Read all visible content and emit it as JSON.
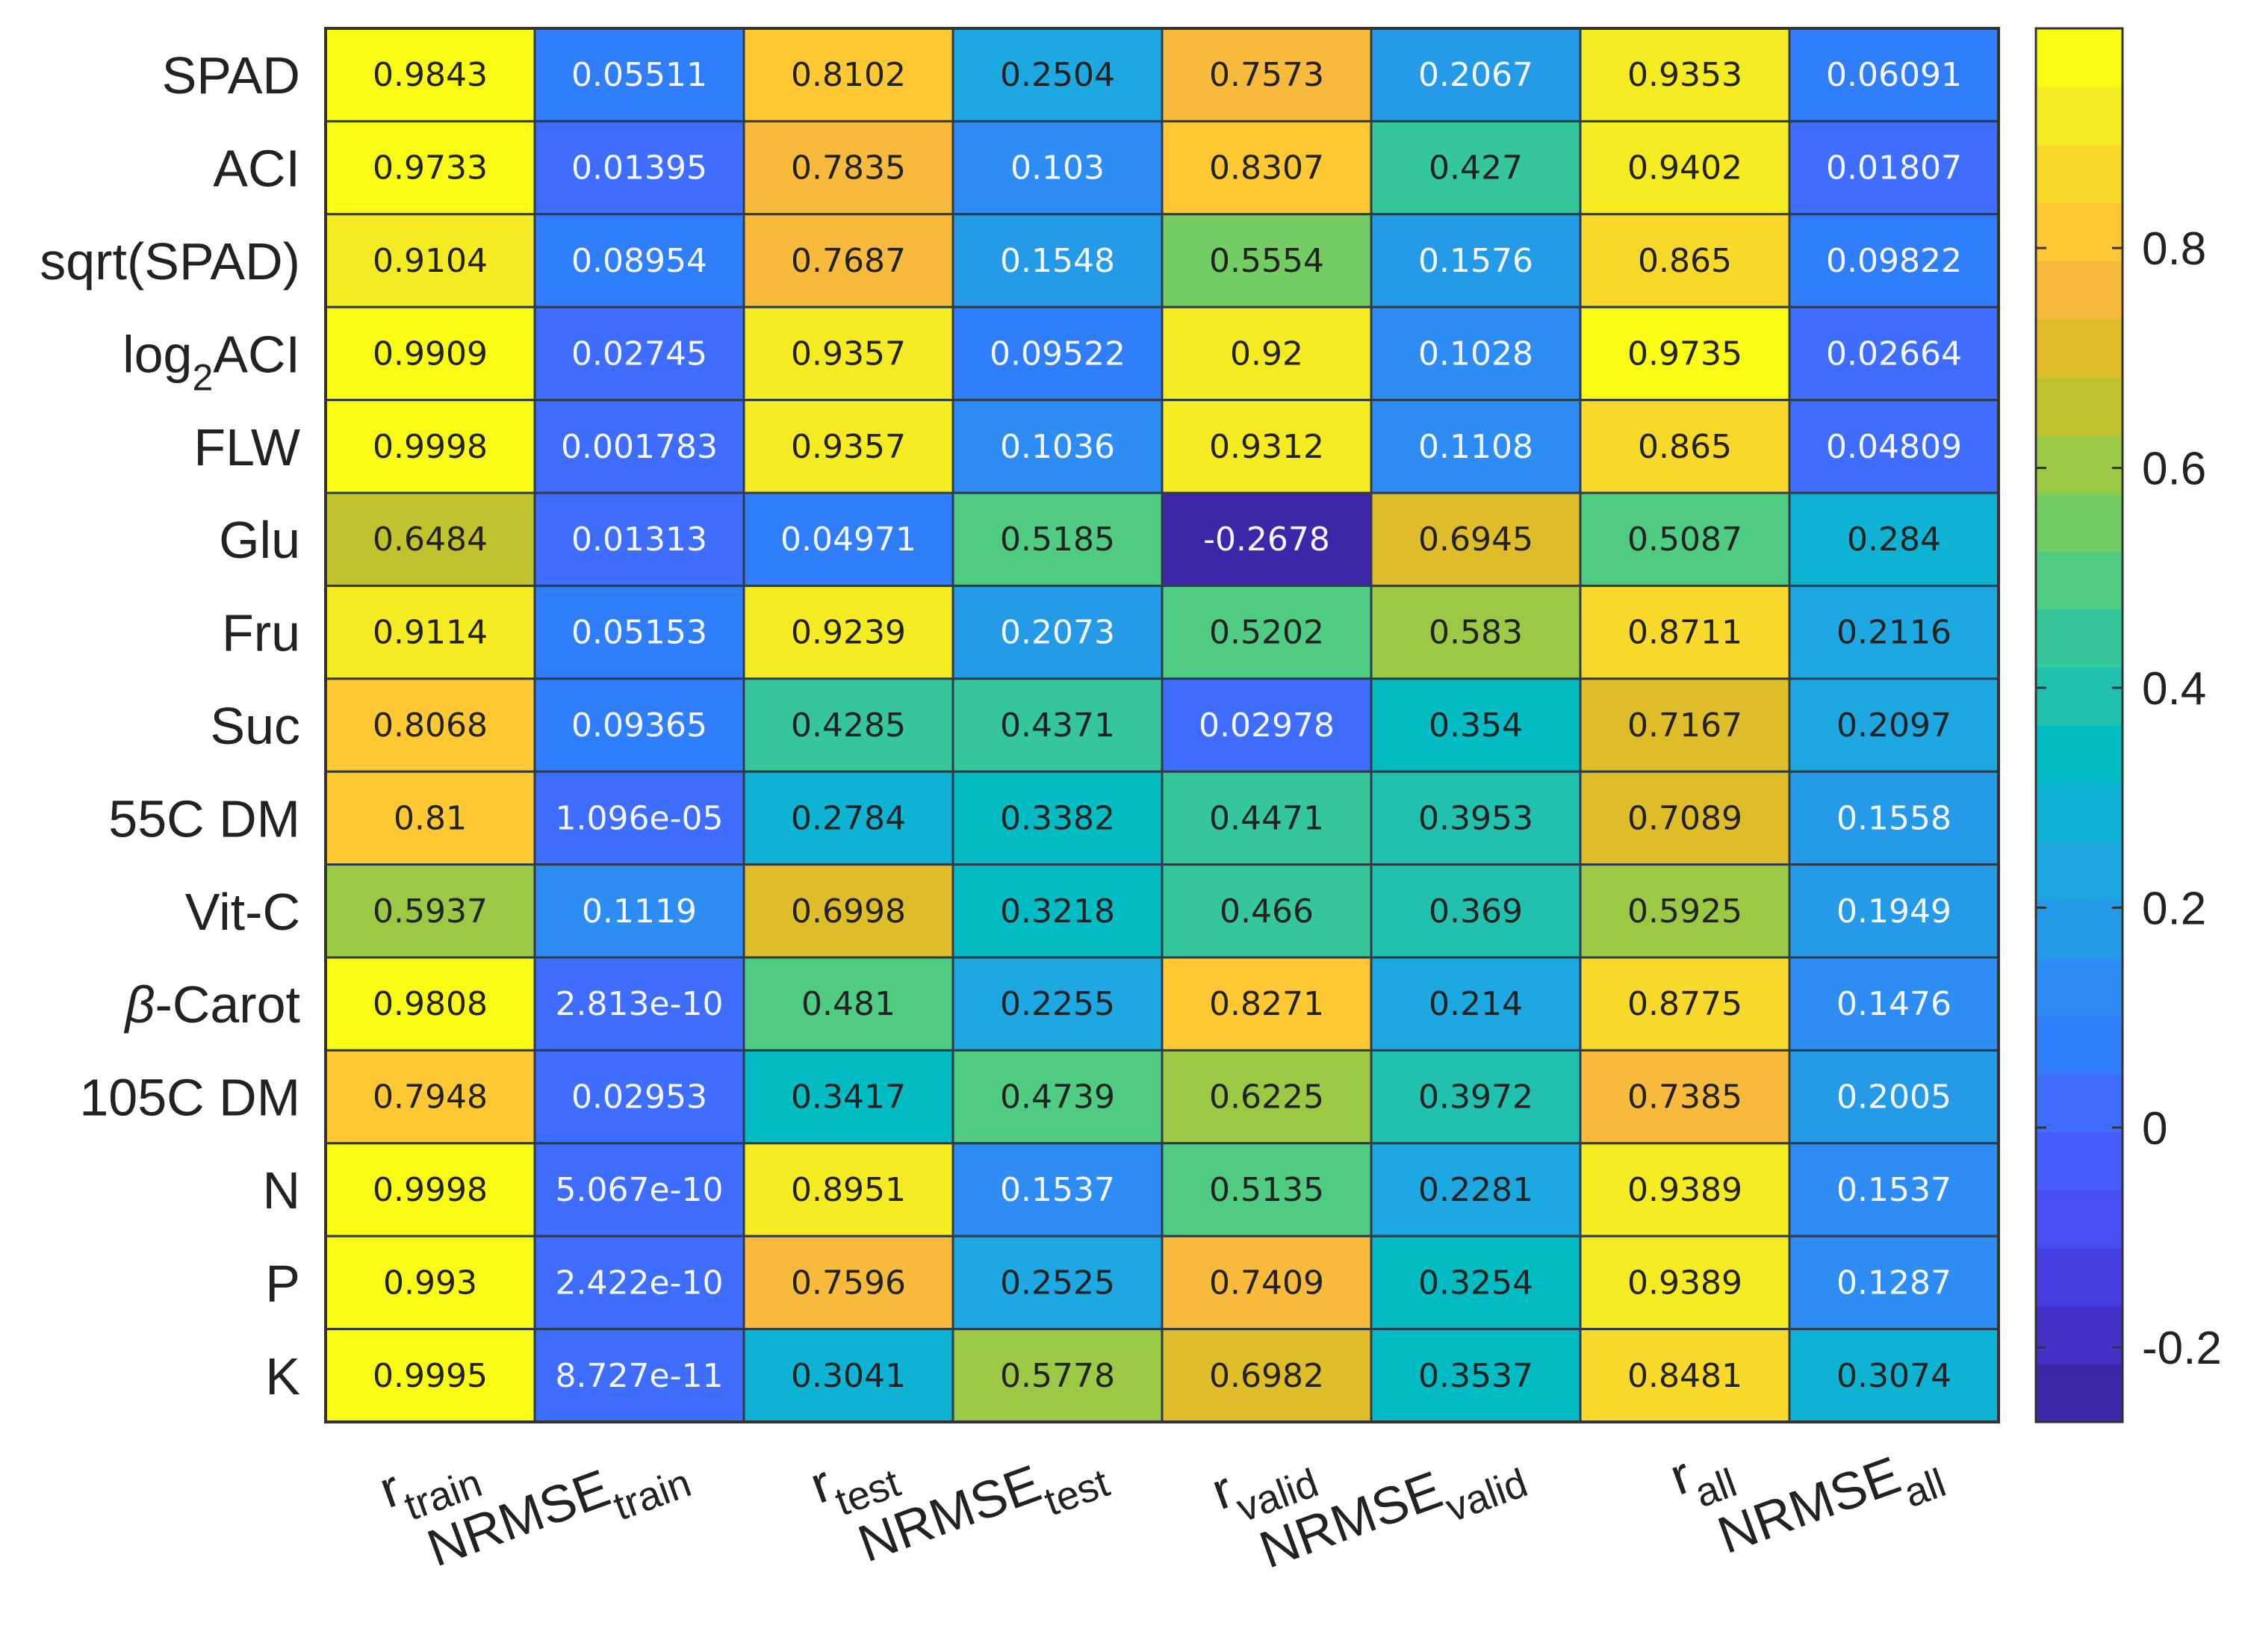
{
  "chart_data": {
    "type": "heatmap",
    "title": "",
    "rows": [
      "SPAD",
      "ACI",
      "sqrt(SPAD)",
      "log2ACI",
      "FLW",
      "Glu",
      "Fru",
      "Suc",
      "55C DM",
      "Vit-C",
      "β-Carot",
      "105C DM",
      "N",
      "P",
      "K"
    ],
    "row_labels": [
      {
        "main": "SPAD"
      },
      {
        "main": "ACI"
      },
      {
        "main": "sqrt(SPAD)"
      },
      {
        "main": "log",
        "sub": "2",
        "tail": "ACI"
      },
      {
        "main": "FLW"
      },
      {
        "main": "Glu"
      },
      {
        "main": "Fru"
      },
      {
        "main": "Suc"
      },
      {
        "main": "55C DM"
      },
      {
        "main": "Vit-C"
      },
      {
        "italic": "β",
        "tail": "-Carot"
      },
      {
        "main": "105C DM"
      },
      {
        "main": "N"
      },
      {
        "main": "P"
      },
      {
        "main": "K"
      }
    ],
    "columns": [
      {
        "main": "r",
        "sub": "train"
      },
      {
        "main": "NRMSE",
        "sub": "train"
      },
      {
        "main": "r",
        "sub": "test"
      },
      {
        "main": "NRMSE",
        "sub": "test"
      },
      {
        "main": "r",
        "sub": "valid"
      },
      {
        "main": "NRMSE",
        "sub": "valid"
      },
      {
        "main": "r",
        "sub": "all"
      },
      {
        "main": "NRMSE",
        "sub": "all"
      }
    ],
    "values": [
      [
        0.9843,
        0.05511,
        0.8102,
        0.2504,
        0.7573,
        0.2067,
        0.9353,
        0.06091
      ],
      [
        0.9733,
        0.01395,
        0.7835,
        0.103,
        0.8307,
        0.427,
        0.9402,
        0.01807
      ],
      [
        0.9104,
        0.08954,
        0.7687,
        0.1548,
        0.5554,
        0.1576,
        0.865,
        0.09822
      ],
      [
        0.9909,
        0.02745,
        0.9357,
        0.09522,
        0.92,
        0.1028,
        0.9735,
        0.02664
      ],
      [
        0.9998,
        0.001783,
        0.9357,
        0.1036,
        0.9312,
        0.1108,
        0.865,
        0.04809
      ],
      [
        0.6484,
        0.01313,
        0.04971,
        0.5185,
        -0.2678,
        0.6945,
        0.5087,
        0.284
      ],
      [
        0.9114,
        0.05153,
        0.9239,
        0.2073,
        0.5202,
        0.583,
        0.8711,
        0.2116
      ],
      [
        0.8068,
        0.09365,
        0.4285,
        0.4371,
        0.02978,
        0.354,
        0.7167,
        0.2097
      ],
      [
        0.81,
        1.096e-05,
        0.2784,
        0.3382,
        0.4471,
        0.3953,
        0.7089,
        0.1558
      ],
      [
        0.5937,
        0.1119,
        0.6998,
        0.3218,
        0.466,
        0.369,
        0.5925,
        0.1949
      ],
      [
        0.9808,
        2.813e-10,
        0.481,
        0.2255,
        0.8271,
        0.214,
        0.8775,
        0.1476
      ],
      [
        0.7948,
        0.02953,
        0.3417,
        0.4739,
        0.6225,
        0.3972,
        0.7385,
        0.2005
      ],
      [
        0.9998,
        5.067e-10,
        0.8951,
        0.1537,
        0.5135,
        0.2281,
        0.9389,
        0.1537
      ],
      [
        0.993,
        2.422e-10,
        0.7596,
        0.2525,
        0.7409,
        0.3254,
        0.9389,
        0.1287
      ],
      [
        0.9995,
        8.727e-11,
        0.3041,
        0.5778,
        0.6982,
        0.3537,
        0.8481,
        0.3074
      ]
    ],
    "value_labels": [
      [
        "0.9843",
        "0.05511",
        "0.8102",
        "0.2504",
        "0.7573",
        "0.2067",
        "0.9353",
        "0.06091"
      ],
      [
        "0.9733",
        "0.01395",
        "0.7835",
        "0.103",
        "0.8307",
        "0.427",
        "0.9402",
        "0.01807"
      ],
      [
        "0.9104",
        "0.08954",
        "0.7687",
        "0.1548",
        "0.5554",
        "0.1576",
        "0.865",
        "0.09822"
      ],
      [
        "0.9909",
        "0.02745",
        "0.9357",
        "0.09522",
        "0.92",
        "0.1028",
        "0.9735",
        "0.02664"
      ],
      [
        "0.9998",
        "0.001783",
        "0.9357",
        "0.1036",
        "0.9312",
        "0.1108",
        "0.865",
        "0.04809"
      ],
      [
        "0.6484",
        "0.01313",
        "0.04971",
        "0.5185",
        "-0.2678",
        "0.6945",
        "0.5087",
        "0.284"
      ],
      [
        "0.9114",
        "0.05153",
        "0.9239",
        "0.2073",
        "0.5202",
        "0.583",
        "0.8711",
        "0.2116"
      ],
      [
        "0.8068",
        "0.09365",
        "0.4285",
        "0.4371",
        "0.02978",
        "0.354",
        "0.7167",
        "0.2097"
      ],
      [
        "0.81",
        "1.096e-05",
        "0.2784",
        "0.3382",
        "0.4471",
        "0.3953",
        "0.7089",
        "0.1558"
      ],
      [
        "0.5937",
        "0.1119",
        "0.6998",
        "0.3218",
        "0.466",
        "0.369",
        "0.5925",
        "0.1949"
      ],
      [
        "0.9808",
        "2.813e-10",
        "0.481",
        "0.2255",
        "0.8271",
        "0.214",
        "0.8775",
        "0.1476"
      ],
      [
        "0.7948",
        "0.02953",
        "0.3417",
        "0.4739",
        "0.6225",
        "0.3972",
        "0.7385",
        "0.2005"
      ],
      [
        "0.9998",
        "5.067e-10",
        "0.8951",
        "0.1537",
        "0.5135",
        "0.2281",
        "0.9389",
        "0.1537"
      ],
      [
        "0.993",
        "2.422e-10",
        "0.7596",
        "0.2525",
        "0.7409",
        "0.3254",
        "0.9389",
        "0.1287"
      ],
      [
        "0.9995",
        "8.727e-11",
        "0.3041",
        "0.5778",
        "0.6982",
        "0.3537",
        "0.8481",
        "0.3074"
      ]
    ],
    "colorbar": {
      "colormap": "parula",
      "discrete_levels": 24,
      "range": [
        -0.2678,
        0.9998
      ],
      "ticks": [
        -0.2,
        0,
        0.2,
        0.4,
        0.6,
        0.8
      ],
      "tick_labels": [
        "-0.2",
        "0",
        "0.2",
        "0.4",
        "0.6",
        "0.8"
      ]
    },
    "colors": {
      "text_on_light": "#222222",
      "text_on_dark": "#f4f7ff",
      "grid": "#2e3b4a",
      "frame": "#333333"
    }
  }
}
